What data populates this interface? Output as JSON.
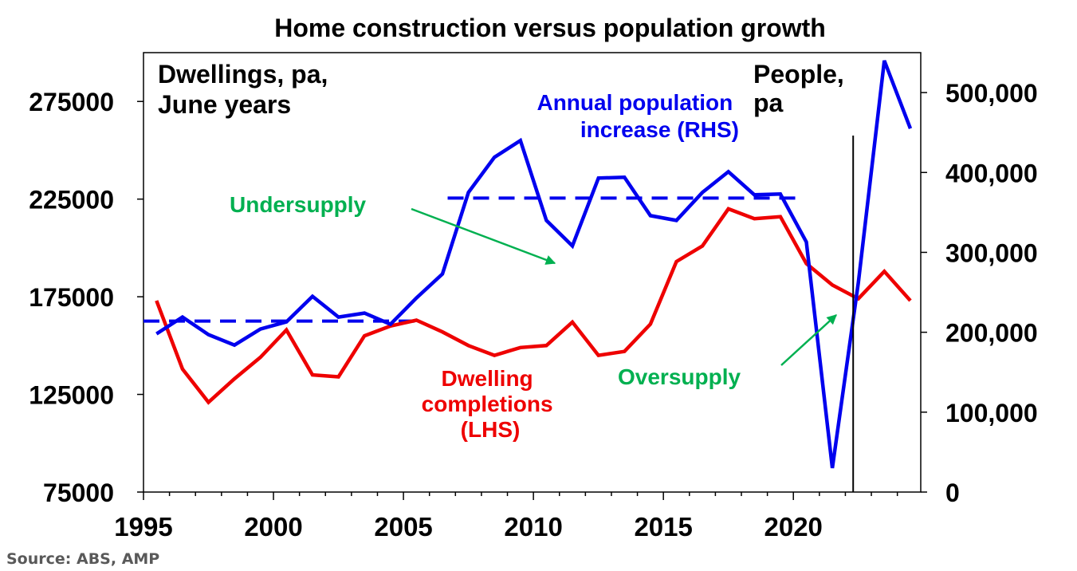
{
  "chart_data": {
    "type": "line",
    "title": "Home construction versus population growth",
    "source": "Source: ABS, AMP",
    "left_axis_title": [
      "Dwellings, pa,",
      "June years"
    ],
    "right_axis_title": [
      "People,",
      "pa"
    ],
    "xlim": [
      1995,
      2024.9
    ],
    "x_ticks": [
      1995,
      2000,
      2005,
      2010,
      2015,
      2020
    ],
    "left_ylim": [
      75000,
      300000
    ],
    "left_ticks": [
      75000,
      125000,
      175000,
      225000,
      275000
    ],
    "right_ylim": [
      0,
      550000
    ],
    "right_ticks": [
      0,
      100000,
      200000,
      300000,
      400000,
      500000
    ],
    "right_tick_labels": [
      "0",
      "100,000",
      "200,000",
      "300,000",
      "400,000",
      "500,000"
    ],
    "grid": false,
    "series": [
      {
        "name": "Annual population increase (RHS)",
        "axis": "right",
        "color": "#0000ee",
        "x": [
          1995.5,
          1996.5,
          1997.5,
          1998.5,
          1999.5,
          2000.5,
          2001.5,
          2002.5,
          2003.5,
          2004.5,
          2005.5,
          2006.5,
          2007.5,
          2008.5,
          2009.5,
          2010.5,
          2011.5,
          2012.5,
          2013.5,
          2014.5,
          2015.5,
          2016.5,
          2017.5,
          2018.5,
          2019.5,
          2020.5,
          2021.5,
          2022.5,
          2023.5,
          2024.5
        ],
        "values": [
          198000,
          219000,
          197000,
          184000,
          204000,
          213000,
          245000,
          219000,
          224000,
          210000,
          243000,
          273000,
          375000,
          419000,
          440000,
          340000,
          308000,
          393000,
          394000,
          346000,
          340000,
          375000,
          401000,
          372000,
          373000,
          313000,
          30000,
          262000,
          540000,
          455000
        ]
      },
      {
        "name": "Dwelling completions (LHS)",
        "axis": "left",
        "color": "#ee0000",
        "x": [
          1995.5,
          1996.5,
          1997.5,
          1998.5,
          1999.5,
          2000.5,
          2001.5,
          2002.5,
          2003.5,
          2004.5,
          2005.5,
          2006.5,
          2007.5,
          2008.5,
          2009.5,
          2010.5,
          2011.5,
          2012.5,
          2013.5,
          2014.5,
          2015.5,
          2016.5,
          2017.5,
          2018.5,
          2019.5,
          2020.5,
          2021.5,
          2022.5,
          2023.5,
          2024.5
        ],
        "values": [
          173000,
          138000,
          121000,
          133000,
          144000,
          158000,
          135000,
          134000,
          155000,
          160000,
          163000,
          157000,
          150000,
          145000,
          149000,
          150000,
          162000,
          145000,
          147000,
          161000,
          193000,
          201000,
          220000,
          215000,
          216000,
          192000,
          181000,
          174000,
          188000,
          173000
        ]
      }
    ],
    "reference_lines": [
      {
        "axis": "right",
        "value": 214000,
        "x": [
          1995,
          2005.5
        ],
        "color": "#0000ee",
        "style": "dashed"
      },
      {
        "axis": "right",
        "value": 368000,
        "x": [
          2006.7,
          2020.2
        ],
        "color": "#0000ee",
        "style": "dashed"
      }
    ],
    "vertical_line": {
      "x": 2022.3
    },
    "annotations": {
      "pop_label": [
        "Annual population",
        "increase (RHS)"
      ],
      "dwell_label": [
        "Dwelling",
        "completions",
        "(LHS)"
      ],
      "undersupply": "Undersupply",
      "oversupply": "Oversupply",
      "annotation_color": "#00b050"
    }
  }
}
